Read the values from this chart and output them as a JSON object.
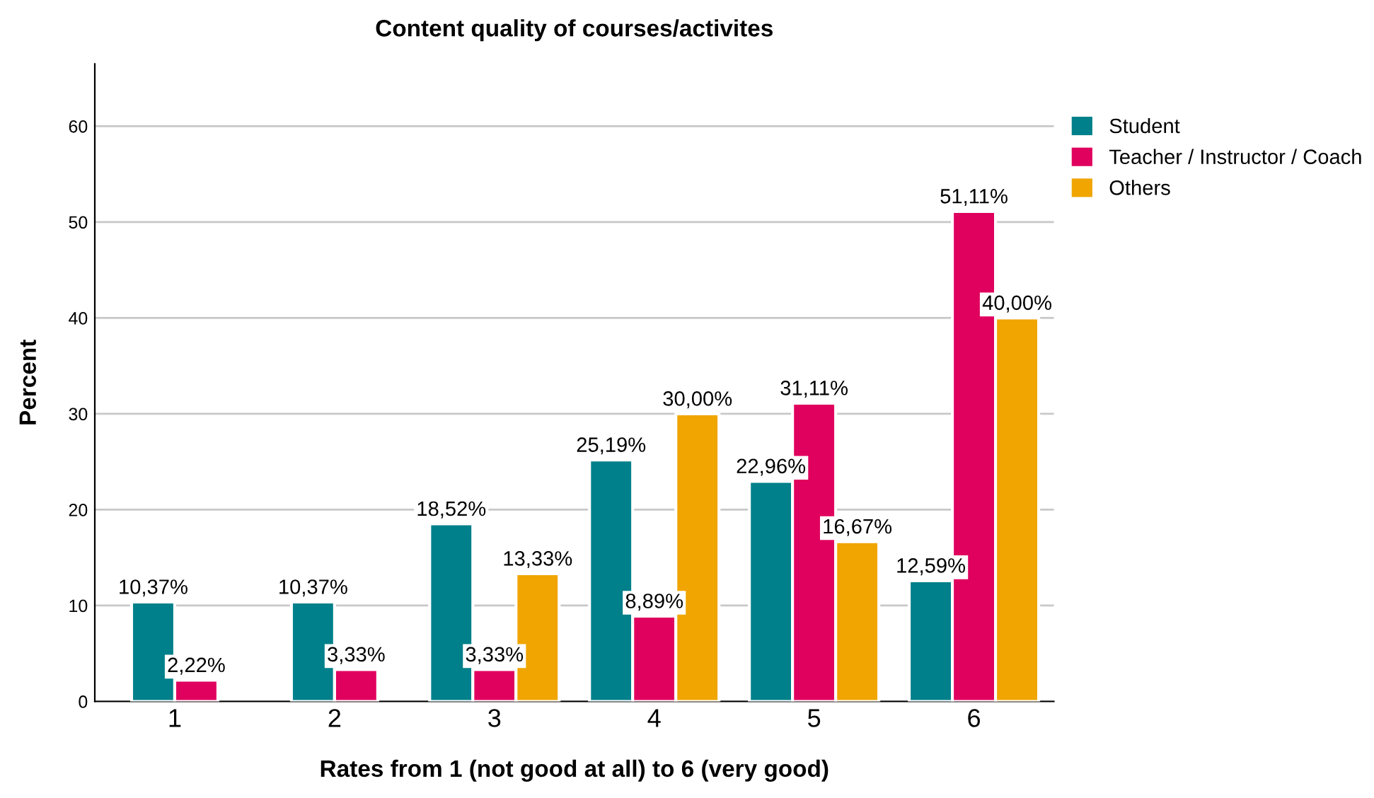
{
  "chart_data": {
    "type": "bar",
    "title": "Content quality of courses/activites",
    "xlabel": "Rates from 1 (not good at all) to 6 (very good)",
    "ylabel": "Percent",
    "categories": [
      "1",
      "2",
      "3",
      "4",
      "5",
      "6"
    ],
    "series": [
      {
        "name": "Student",
        "color": "#00808a",
        "values": [
          10.37,
          10.37,
          18.52,
          25.19,
          22.96,
          12.59
        ],
        "value_labels": [
          "10,37%",
          "10,37%",
          "18,52%",
          "25,19%",
          "22,96%",
          "12,59%"
        ]
      },
      {
        "name": "Teacher / Instructor / Coach",
        "color": "#e0005e",
        "values": [
          2.22,
          3.33,
          3.33,
          8.89,
          31.11,
          51.11
        ],
        "value_labels": [
          "2,22%",
          "3,33%",
          "3,33%",
          "8,89%",
          "31,11%",
          "51,11%"
        ]
      },
      {
        "name": "Others",
        "color": "#f0a500",
        "values": [
          null,
          null,
          13.33,
          30.0,
          16.67,
          40.0
        ],
        "value_labels": [
          null,
          null,
          "13,33%",
          "30,00%",
          "16,67%",
          "40,00%"
        ]
      }
    ],
    "ylim": [
      0,
      66.5
    ],
    "yticks": [
      0,
      10,
      20,
      30,
      40,
      50,
      60
    ],
    "grid": "y",
    "legend": "top right"
  }
}
